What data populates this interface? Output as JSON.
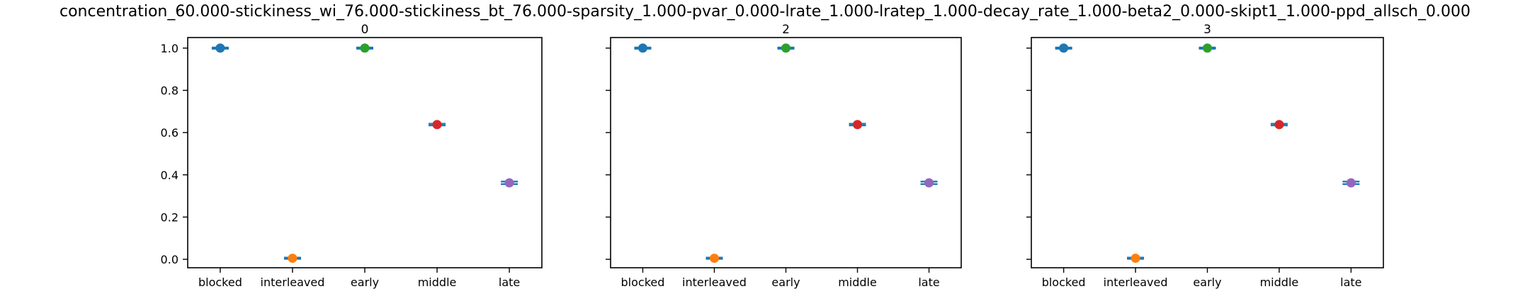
{
  "figure": {
    "title": "concentration_60.000-stickiness_wi_76.000-stickiness_bt_76.000-sparsity_1.000-pvar_0.000-lrate_1.000-lratep_1.000-decay_rate_1.000-beta2_0.000-skipt1_1.000-ppd_allsch_0.000"
  },
  "colors": {
    "blocked": "#1f77b4",
    "interleaved": "#ff7f0e",
    "early": "#2ca02c",
    "middle": "#d62728",
    "late": "#9467bd",
    "errorbar": "#1f77b4"
  },
  "chart_data": [
    {
      "type": "scatter",
      "title": "0",
      "categories": [
        "blocked",
        "interleaved",
        "early",
        "middle",
        "late"
      ],
      "values": [
        1.0,
        0.005,
        1.0,
        0.638,
        0.362
      ],
      "errors": [
        0.003,
        0.003,
        0.003,
        0.004,
        0.006
      ],
      "ylim": [
        -0.04,
        1.05
      ],
      "yticks": [
        0.0,
        0.2,
        0.4,
        0.6,
        0.8,
        1.0
      ],
      "ytick_labels": [
        "0.0",
        "0.2",
        "0.4",
        "0.6",
        "0.8",
        "1.0"
      ],
      "show_ytick_labels": true,
      "xlabel": "",
      "ylabel": ""
    },
    {
      "type": "scatter",
      "title": "2",
      "categories": [
        "blocked",
        "interleaved",
        "early",
        "middle",
        "late"
      ],
      "values": [
        1.0,
        0.005,
        1.0,
        0.638,
        0.362
      ],
      "errors": [
        0.003,
        0.003,
        0.003,
        0.004,
        0.006
      ],
      "ylim": [
        -0.04,
        1.05
      ],
      "yticks": [
        0.0,
        0.2,
        0.4,
        0.6,
        0.8,
        1.0
      ],
      "ytick_labels": [],
      "show_ytick_labels": false,
      "xlabel": "",
      "ylabel": ""
    },
    {
      "type": "scatter",
      "title": "3",
      "categories": [
        "blocked",
        "interleaved",
        "early",
        "middle",
        "late"
      ],
      "values": [
        1.0,
        0.005,
        1.0,
        0.638,
        0.362
      ],
      "errors": [
        0.003,
        0.003,
        0.003,
        0.004,
        0.006
      ],
      "ylim": [
        -0.04,
        1.05
      ],
      "yticks": [
        0.0,
        0.2,
        0.4,
        0.6,
        0.8,
        1.0
      ],
      "ytick_labels": [],
      "show_ytick_labels": false,
      "xlabel": "",
      "ylabel": ""
    }
  ]
}
